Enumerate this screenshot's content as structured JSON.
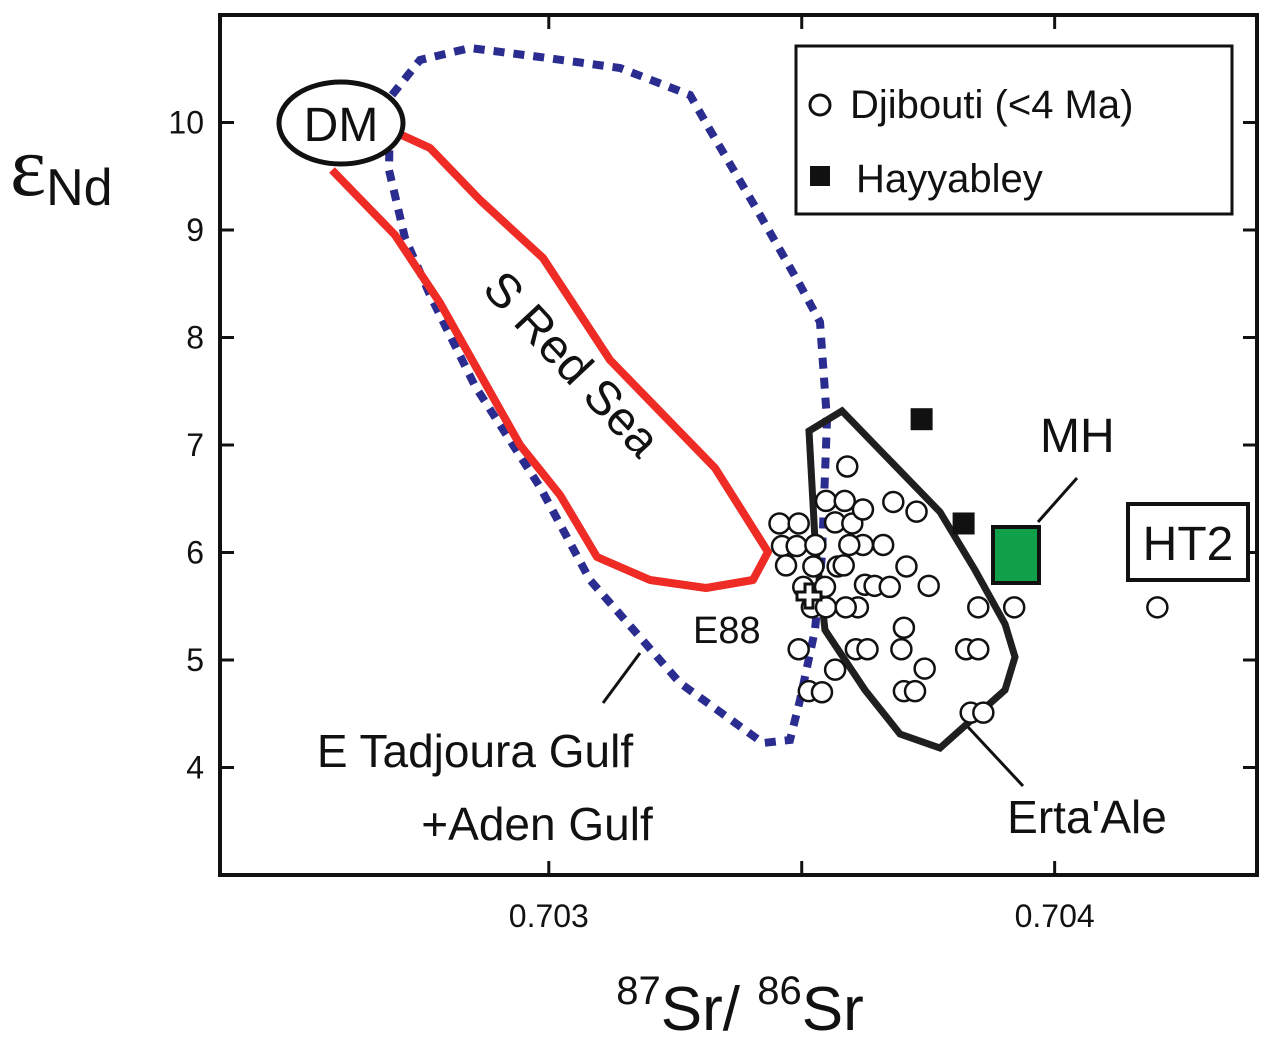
{
  "chart_data": {
    "type": "scatter",
    "xlabel": {
      "sup1": "87",
      "base1": "Sr/ ",
      "sup2": "86",
      "base2": "Sr"
    },
    "ylabel": {
      "symbol": "ε",
      "sub": "Nd"
    },
    "xlim": [
      0.70235,
      0.7044
    ],
    "ylim": [
      3.0,
      11.0
    ],
    "x_ticks": [
      0.703,
      0.7035,
      0.704
    ],
    "x_tick_labels": [
      "0.703",
      "",
      "0.704"
    ],
    "y_ticks": [
      4,
      5,
      6,
      7,
      8,
      9,
      10
    ],
    "y_tick_labels": [
      "4",
      "5",
      "6",
      "7",
      "8",
      "9",
      "10"
    ],
    "grid": false,
    "legend": {
      "position": "top-right",
      "entries": [
        {
          "label": "Djibouti (<4 Ma)",
          "marker": "open-circle"
        },
        {
          "label": "Hayyabley",
          "marker": "filled-square"
        }
      ]
    },
    "series": [
      {
        "name": "Djibouti (<4 Ma)",
        "marker": "open-circle",
        "points": [
          [
            0.703456,
            6.27
          ],
          [
            0.703494,
            6.27
          ],
          [
            0.703461,
            6.06
          ],
          [
            0.70349,
            6.06
          ],
          [
            0.703469,
            5.88
          ],
          [
            0.703503,
            5.68
          ],
          [
            0.703523,
            5.87
          ],
          [
            0.703527,
            6.07
          ],
          [
            0.703546,
            5.68
          ],
          [
            0.70352,
            5.49
          ],
          [
            0.703571,
            5.87
          ],
          [
            0.703548,
            6.48
          ],
          [
            0.703566,
            6.28
          ],
          [
            0.703585,
            6.48
          ],
          [
            0.7036,
            6.27
          ],
          [
            0.703621,
            6.07
          ],
          [
            0.703594,
            6.07
          ],
          [
            0.703583,
            5.88
          ],
          [
            0.703548,
            5.49
          ],
          [
            0.703611,
            5.49
          ],
          [
            0.703587,
            5.49
          ],
          [
            0.703621,
            6.4
          ],
          [
            0.703661,
            6.07
          ],
          [
            0.703625,
            5.7
          ],
          [
            0.703644,
            5.69
          ],
          [
            0.703674,
            5.68
          ],
          [
            0.703707,
            5.87
          ],
          [
            0.703751,
            5.69
          ],
          [
            0.703681,
            6.47
          ],
          [
            0.703727,
            6.38
          ],
          [
            0.70359,
            6.8
          ],
          [
            0.703494,
            5.1
          ],
          [
            0.703514,
            4.71
          ],
          [
            0.70354,
            4.7
          ],
          [
            0.703566,
            4.91
          ],
          [
            0.703607,
            5.1
          ],
          [
            0.70363,
            5.1
          ],
          [
            0.703702,
            5.3
          ],
          [
            0.703697,
            5.1
          ],
          [
            0.703702,
            4.71
          ],
          [
            0.703724,
            4.71
          ],
          [
            0.703743,
            4.92
          ],
          [
            0.703825,
            5.1
          ],
          [
            0.703849,
            5.1
          ],
          [
            0.703849,
            5.49
          ],
          [
            0.703834,
            4.51
          ],
          [
            0.703859,
            4.51
          ],
          [
            0.70392,
            5.49
          ],
          [
            0.704203,
            5.49
          ]
        ]
      },
      {
        "name": "Hayyabley",
        "marker": "filled-square",
        "points": [
          [
            0.703737,
            7.24
          ],
          [
            0.70382,
            6.27
          ]
        ]
      }
    ],
    "fields": [
      {
        "name": "S Red Sea",
        "color": "#ee2b24",
        "style": "solid"
      },
      {
        "name": "E Tadjoura Gulf +Aden Gulf",
        "color": "#2a2c8f",
        "style": "dotted"
      },
      {
        "name": "Erta'Ale",
        "color": "#1f1f1f",
        "style": "solid"
      }
    ],
    "annotations": {
      "dm": "DM",
      "red_sea": "S Red Sea",
      "mh": "MH",
      "ht2": "HT2",
      "e88": "E88",
      "tadjoura_line1": "E Tadjoura Gulf",
      "tadjoura_line2": "+Aden Gulf",
      "erta_ale": "Erta'Ale"
    },
    "mh_fill_color": "#10a04a"
  }
}
